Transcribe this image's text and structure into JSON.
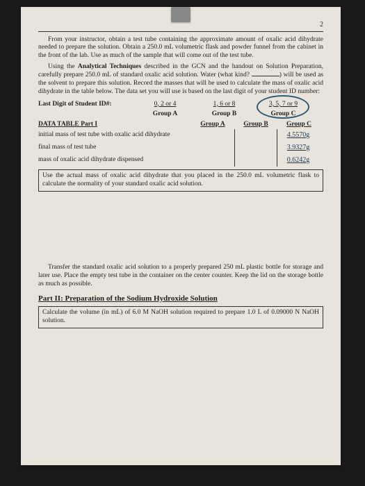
{
  "page_number": "2",
  "para1": "From your instructor, obtain a test tube containing the approximate amount of oxalic acid dihydrate needed to prepare the solution. Obtain a 250.0 mL volumetric flask and powder funnel from the cabinet in the front of the lab. Use as much of the sample that will come out of the test tube.",
  "para2_a": "Using the ",
  "para2_bold": "Analytical Techniques",
  "para2_b": " described in the GCN and the handout on Solution Preparation, carefully prepare 250.0 mL of standard oxalic acid solution. Water (what kind? ",
  "para2_c": ") will be used as the solvent to prepare this solution. Record the masses that will be used to calculate the mass of oxalic acid dihydrate in the table below. The data set you will use is based on the last digit of your student ID number:",
  "lastdigit_label": "Last Digit of Student ID#:",
  "col1": "0, 2 or 4",
  "col2": "1, 6 or 8",
  "col3": "3, 5, 7 or 9",
  "g1": "Group A",
  "g2": "Group B",
  "g3": "Group C",
  "data_table_label": "DATA TABLE Part I",
  "hA": "Group A",
  "hB": "Group B",
  "hC": "Group C",
  "row1": "initial mass of test tube with oxalic acid dihydrate",
  "row2": "final mass of test tube",
  "row3": "mass of oxalic acid dihydrate dispensed",
  "val1": "4.5570g",
  "val2": "3.9327g",
  "val3": "0.6242g",
  "box1": "Use the actual mass of oxalic acid dihydrate that you placed in the 250.0 mL volumetric flask to calculate the normality of your standard oxalic acid solution.",
  "para3": "Transfer the standard oxalic acid solution to a properly prepared 250 mL plastic bottle for storage and later use. Place the empty test tube in the container on the center counter. Keep the lid on the storage bottle as much as possible.",
  "part2_title": "Part II:  Preparation of the Sodium Hydroxide Solution",
  "box2": "Calculate the volume (in mL) of 6.0 M NaOH solution required to prepare 1.0 L of 0.09000 N NaOH solution."
}
